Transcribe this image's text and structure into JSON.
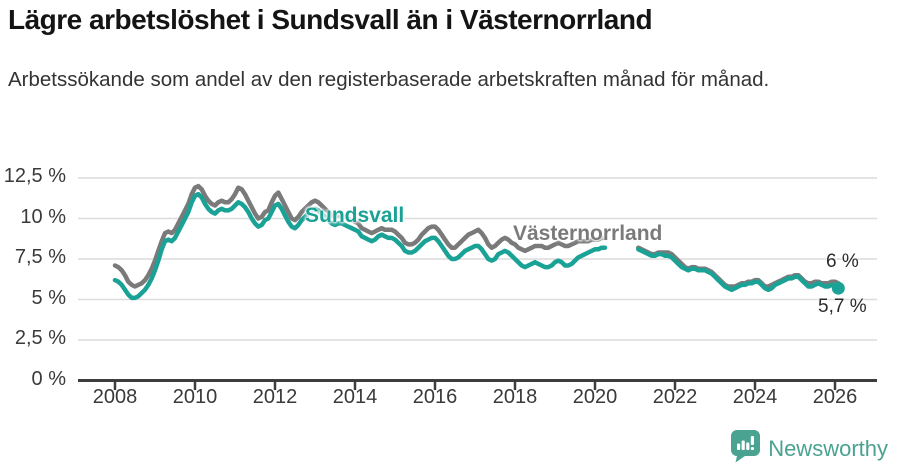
{
  "chart_data": {
    "type": "line",
    "title": "Lägre arbetslöshet i Sundsvall än i Västernorrland",
    "subtitle": "Arbetssökande som andel av den registerbaserade arbetskraften månad för månad.",
    "legend": "inline-labels-on-lines",
    "grid": "horizontal-only",
    "points_per_year": 12,
    "y_axis": {
      "unit": "%",
      "range": [
        0,
        12.5
      ],
      "ticks": [
        {
          "value": 0,
          "label": "0 %"
        },
        {
          "value": 2.5,
          "label": "2,5 %"
        },
        {
          "value": 5,
          "label": "5 %"
        },
        {
          "value": 7.5,
          "label": "7,5 %"
        },
        {
          "value": 10,
          "label": "10 %"
        },
        {
          "value": 12.5,
          "label": "12,5 %"
        }
      ]
    },
    "x_axis": {
      "range_years": [
        2007.1,
        2027.05
      ],
      "ticks": [
        {
          "value": 2008,
          "label": "2008"
        },
        {
          "value": 2010,
          "label": "2010"
        },
        {
          "value": 2012,
          "label": "2012"
        },
        {
          "value": 2014,
          "label": "2014"
        },
        {
          "value": 2016,
          "label": "2016"
        },
        {
          "value": 2018,
          "label": "2018"
        },
        {
          "value": 2020,
          "label": "2020"
        },
        {
          "value": 2022,
          "label": "2022"
        },
        {
          "value": 2024,
          "label": "2024"
        },
        {
          "value": 2026,
          "label": "2026"
        }
      ]
    },
    "colors": {
      "grid": "#dcdcdc",
      "axis": "#3d3d3d"
    },
    "series": [
      {
        "name": "Västernorrland",
        "color": "#7a7a7a",
        "end_label": "6 %",
        "end_dot": false,
        "segments": [
          {
            "x0": 2008.0,
            "values": [
              7.1,
              7.0,
              6.8,
              6.5,
              6.1,
              5.9,
              5.8,
              5.9,
              6.0,
              6.2,
              6.5,
              6.9,
              7.4,
              8.0,
              8.6,
              9.1,
              9.2,
              9.1,
              9.3,
              9.7,
              10.1,
              10.5,
              10.9,
              11.5,
              11.9,
              12.0,
              11.8,
              11.4,
              11.1,
              10.9,
              10.8,
              11.0,
              11.1,
              11.0,
              11.0,
              11.2,
              11.5,
              11.9,
              11.8,
              11.5,
              11.1,
              10.7,
              10.3,
              10.0,
              10.1,
              10.4,
              10.5,
              11.0,
              11.4,
              11.6,
              11.2,
              10.8,
              10.4,
              10.0,
              9.9,
              10.1,
              10.4,
              10.6,
              10.8,
              11.0,
              11.1,
              11.0,
              10.8,
              10.6,
              10.4,
              10.2,
              10.1,
              10.2,
              10.2,
              10.1,
              10.0,
              9.9,
              9.8,
              9.7,
              9.4,
              9.3,
              9.2,
              9.1,
              9.2,
              9.3,
              9.4,
              9.3,
              9.3,
              9.3,
              9.2,
              9.0,
              8.8,
              8.5,
              8.4,
              8.4,
              8.5,
              8.7,
              9.0,
              9.2,
              9.4,
              9.5,
              9.5,
              9.3,
              9.0,
              8.7,
              8.4,
              8.2,
              8.2,
              8.4,
              8.6,
              8.8,
              9.0,
              9.1,
              9.2,
              9.3,
              9.1,
              8.8,
              8.4,
              8.2,
              8.3,
              8.5,
              8.7,
              8.8,
              8.7,
              8.5,
              8.4,
              8.2,
              8.1,
              8.0,
              8.1,
              8.2,
              8.3,
              8.3,
              8.3,
              8.2,
              8.2,
              8.3,
              8.4,
              8.5,
              8.4,
              8.3,
              8.3,
              8.4,
              8.5,
              8.6,
              8.6,
              8.6,
              8.6,
              8.7,
              8.7,
              8.7,
              8.8,
              8.8
            ]
          },
          {
            "x0": 2021.083,
            "values": [
              8.2,
              8.1,
              8.0,
              7.9,
              7.8,
              7.8,
              7.9,
              7.9,
              7.9,
              7.9,
              7.8,
              7.6,
              7.4,
              7.2,
              7.0,
              6.9,
              7.0,
              7.0,
              6.9,
              6.9,
              6.9,
              6.8,
              6.7,
              6.5,
              6.3,
              6.1,
              5.9,
              5.8,
              5.8,
              5.8,
              5.9,
              6.0,
              6.0,
              6.1,
              6.1,
              6.2,
              6.2,
              6.0,
              5.8,
              5.8,
              5.9,
              6.0,
              6.1,
              6.2,
              6.3,
              6.4,
              6.4,
              6.5,
              6.5,
              6.3,
              6.1,
              6.0,
              6.0,
              6.1,
              6.1,
              6.0,
              6.0,
              6.0,
              6.1,
              6.1,
              6.0
            ]
          }
        ]
      },
      {
        "name": "Sundsvall",
        "color": "#1aa296",
        "end_label": "5,7 %",
        "end_dot": true,
        "segments": [
          {
            "x0": 2008.0,
            "values": [
              6.2,
              6.1,
              5.9,
              5.6,
              5.3,
              5.1,
              5.1,
              5.2,
              5.4,
              5.6,
              5.9,
              6.3,
              6.8,
              7.4,
              8.1,
              8.6,
              8.7,
              8.6,
              8.8,
              9.2,
              9.6,
              10.0,
              10.4,
              11.0,
              11.4,
              11.5,
              11.3,
              10.9,
              10.6,
              10.4,
              10.3,
              10.5,
              10.6,
              10.5,
              10.5,
              10.6,
              10.8,
              11.0,
              10.9,
              10.7,
              10.4,
              10.0,
              9.7,
              9.5,
              9.6,
              9.9,
              10.0,
              10.4,
              10.8,
              10.9,
              10.6,
              10.2,
              9.8,
              9.5,
              9.4,
              9.6,
              9.9,
              10.1,
              10.3,
              10.5,
              10.6,
              10.5,
              10.3,
              10.1,
              9.9,
              9.7,
              9.6,
              9.7,
              9.7,
              9.6,
              9.5,
              9.4,
              9.3,
              9.2,
              8.9,
              8.8,
              8.7,
              8.6,
              8.7,
              8.9,
              9.0,
              8.9,
              8.8,
              8.8,
              8.7,
              8.5,
              8.3,
              8.0,
              7.9,
              7.9,
              8.0,
              8.2,
              8.4,
              8.6,
              8.7,
              8.8,
              8.8,
              8.6,
              8.3,
              8.0,
              7.7,
              7.5,
              7.5,
              7.6,
              7.8,
              8.0,
              8.1,
              8.2,
              8.3,
              8.3,
              8.1,
              7.8,
              7.5,
              7.4,
              7.5,
              7.8,
              7.9,
              8.0,
              7.9,
              7.7,
              7.5,
              7.3,
              7.1,
              7.0,
              7.1,
              7.2,
              7.3,
              7.2,
              7.1,
              7.0,
              7.0,
              7.1,
              7.3,
              7.4,
              7.3,
              7.1,
              7.1,
              7.2,
              7.4,
              7.6,
              7.7,
              7.8,
              7.9,
              8.0,
              8.1,
              8.1,
              8.2,
              8.2
            ]
          },
          {
            "x0": 2021.083,
            "values": [
              8.1,
              8.0,
              7.9,
              7.8,
              7.7,
              7.7,
              7.8,
              7.8,
              7.7,
              7.7,
              7.6,
              7.4,
              7.2,
              7.0,
              6.9,
              6.8,
              6.9,
              6.9,
              6.8,
              6.8,
              6.8,
              6.7,
              6.6,
              6.4,
              6.2,
              6.0,
              5.8,
              5.7,
              5.6,
              5.7,
              5.8,
              5.9,
              5.9,
              6.0,
              6.0,
              6.1,
              6.1,
              5.9,
              5.7,
              5.6,
              5.7,
              5.9,
              6.0,
              6.1,
              6.2,
              6.3,
              6.3,
              6.4,
              6.4,
              6.2,
              6.0,
              5.8,
              5.8,
              5.9,
              6.0,
              5.9,
              5.8,
              5.8,
              5.9,
              5.8,
              5.7
            ]
          }
        ]
      }
    ]
  },
  "footer": {
    "brand": "Newsworthy",
    "brand_color": "#4aa291",
    "logo_icon": "bar-chart-speech-bubble"
  }
}
